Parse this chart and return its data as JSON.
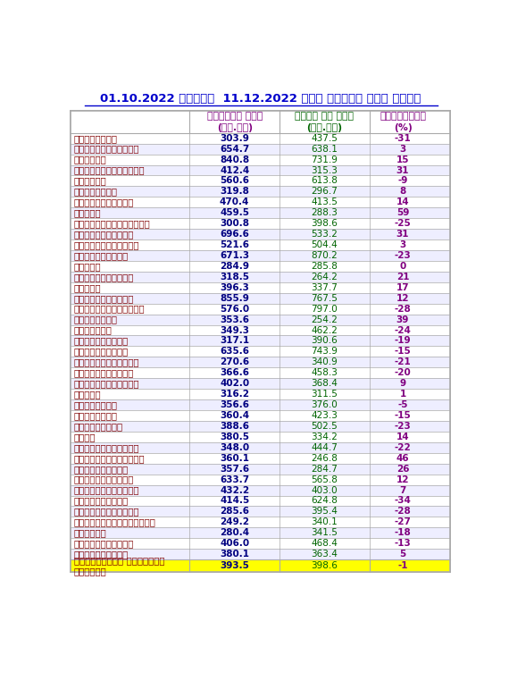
{
  "title": "01.10.2022 முதல்  11.12.2022 வரை பெய்த மழை அளவு",
  "col1_header": "பதிவான மழை\n(மி.மீ)",
  "col2_header": "இயல் பு மழை\n(மி.மீ)",
  "col3_header": "வேறுபாடு\n(%)",
  "rows": [
    [
      "அரியலூர்",
      "303.9",
      "437.5",
      "-31"
    ],
    [
      "செங்கல்பட்டு",
      "654.7",
      "638.1",
      "3"
    ],
    [
      "சென்னை",
      "840.8",
      "731.9",
      "15"
    ],
    [
      "கோயம்புத்தூர்",
      "412.4",
      "315.3",
      "31"
    ],
    [
      "கடலூர்",
      "560.6",
      "613.8",
      "-9"
    ],
    [
      "தர்மபுரி",
      "319.8",
      "296.7",
      "8"
    ],
    [
      "திண்டுக்கல்",
      "470.4",
      "413.5",
      "14"
    ],
    [
      "ஏரோடு",
      "459.5",
      "288.3",
      "59"
    ],
    [
      "கள்ளக்குறிச்சி",
      "300.8",
      "398.6",
      "-25"
    ],
    [
      "காஞ்சிபுரம்",
      "696.6",
      "533.2",
      "31"
    ],
    [
      "கன்னியாகுமரி",
      "521.6",
      "504.4",
      "3"
    ],
    [
      "காரைக்கால்",
      "671.3",
      "870.2",
      "-23"
    ],
    [
      "கரூர்",
      "284.9",
      "285.8",
      "0"
    ],
    [
      "கிருஷ்ணகிரி",
      "318.5",
      "264.2",
      "21"
    ],
    [
      "மதுரை",
      "396.3",
      "337.7",
      "17"
    ],
    [
      "மயிலாடுதுறை",
      "855.9",
      "767.5",
      "12"
    ],
    [
      "நாகப்பட்டினம்",
      "576.0",
      "797.0",
      "-28"
    ],
    [
      "நாமக்கல்",
      "353.6",
      "254.2",
      "39"
    ],
    [
      "நீலகிரி",
      "349.3",
      "462.2",
      "-24"
    ],
    [
      "பெரம்பலூர்",
      "317.1",
      "390.6",
      "-19"
    ],
    [
      "புதுச்சேரி",
      "635.6",
      "743.9",
      "-15"
    ],
    [
      "புதுக்கோட்டை",
      "270.6",
      "340.9",
      "-21"
    ],
    [
      "ராமநாதபுரம்",
      "366.6",
      "458.3",
      "-20"
    ],
    [
      "ராணிப்பேட்டை",
      "402.0",
      "368.4",
      "9"
    ],
    [
      "சேலம்",
      "316.2",
      "311.5",
      "1"
    ],
    [
      "சிவகங்கை",
      "356.6",
      "376.0",
      "-5"
    ],
    [
      "தென்காசி",
      "360.4",
      "423.3",
      "-15"
    ],
    [
      "தஞ்சாவூர்",
      "388.6",
      "502.5",
      "-23"
    ],
    [
      "தேனி",
      "380.5",
      "334.2",
      "14"
    ],
    [
      "திருநெல்வேலி",
      "348.0",
      "444.7",
      "-22"
    ],
    [
      "திருப்பத்தூர்",
      "360.1",
      "246.8",
      "46"
    ],
    [
      "திருப்பூர்",
      "357.6",
      "284.7",
      "26"
    ],
    [
      "திருவள்ளூர்",
      "633.7",
      "565.8",
      "12"
    ],
    [
      "திருவண்ணாமலை",
      "432.2",
      "403.0",
      "7"
    ],
    [
      "திருவாரூர்",
      "414.5",
      "624.8",
      "-34"
    ],
    [
      "தூத்துக்குடி",
      "285.6",
      "395.4",
      "-28"
    ],
    [
      "திருசிராப்பள்ளி",
      "249.2",
      "340.1",
      "-27"
    ],
    [
      "வேலூர்",
      "280.4",
      "341.5",
      "-18"
    ],
    [
      "விழுப்யுரம்",
      "406.0",
      "468.4",
      "-13"
    ],
    [
      "விருதுநகர்",
      "380.1",
      "363.4",
      "5"
    ]
  ],
  "footer_row": [
    "தமிழ்நாடு மற்றும்\nயுதுவை",
    "393.5",
    "398.6",
    "-1"
  ],
  "bg_color": "#ffffff",
  "footer_bg": "#ffff00",
  "title_color": "#0000cc",
  "header_color1": "#800080",
  "header_color2": "#006400",
  "header_color3": "#800080",
  "cell_color1": "#000080",
  "cell_color2": "#006400",
  "cell_color3": "#800080",
  "district_color": "#800000",
  "border_color": "#aaaaaa",
  "row_alt_bg": "#eeeeff"
}
